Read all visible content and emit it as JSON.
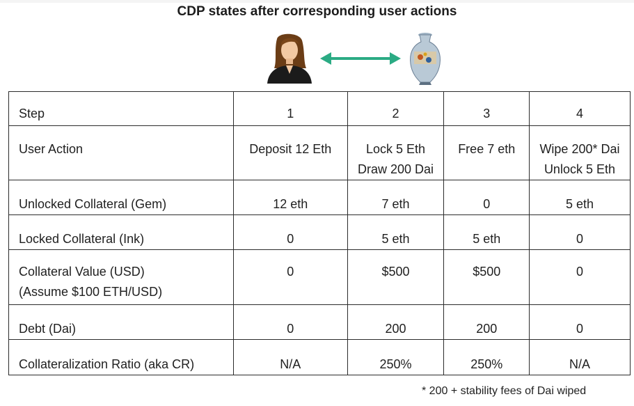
{
  "title": "CDP states after corresponding user actions",
  "illustration": {
    "person_icon": "woman-icon",
    "arrow_icon": "double-arrow-icon",
    "vault_icon": "vase-icon",
    "arrow_color": "#2bab84"
  },
  "table": {
    "header": {
      "label": "Step",
      "steps": [
        "1",
        "2",
        "3",
        "4"
      ]
    },
    "rows": [
      {
        "label": [
          "User Action"
        ],
        "values": [
          [
            "Deposit 12 Eth"
          ],
          [
            "Lock 5 Eth",
            "Draw 200 Dai"
          ],
          [
            "Free 7 eth"
          ],
          [
            "Wipe 200* Dai",
            "Unlock 5 Eth"
          ]
        ]
      },
      {
        "label": [
          "Unlocked Collateral (Gem)"
        ],
        "values": [
          [
            "12 eth"
          ],
          [
            "7 eth"
          ],
          [
            "0"
          ],
          [
            "5 eth"
          ]
        ]
      },
      {
        "label": [
          "Locked Collateral (Ink)"
        ],
        "values": [
          [
            "0"
          ],
          [
            "5 eth"
          ],
          [
            "5 eth"
          ],
          [
            "0"
          ]
        ]
      },
      {
        "label": [
          "Collateral Value (USD)",
          "(Assume $100 ETH/USD)"
        ],
        "values": [
          [
            "0"
          ],
          [
            "$500"
          ],
          [
            "$500"
          ],
          [
            "0"
          ]
        ]
      },
      {
        "label": [
          "Debt (Dai)"
        ],
        "values": [
          [
            "0"
          ],
          [
            "200"
          ],
          [
            "200"
          ],
          [
            "0"
          ]
        ]
      },
      {
        "label": [
          "Collateralization Ratio (aka CR)"
        ],
        "values": [
          [
            "N/A"
          ],
          [
            "250%"
          ],
          [
            "250%"
          ],
          [
            "N/A"
          ]
        ]
      }
    ]
  },
  "footnote": "* 200 + stability fees of Dai wiped"
}
